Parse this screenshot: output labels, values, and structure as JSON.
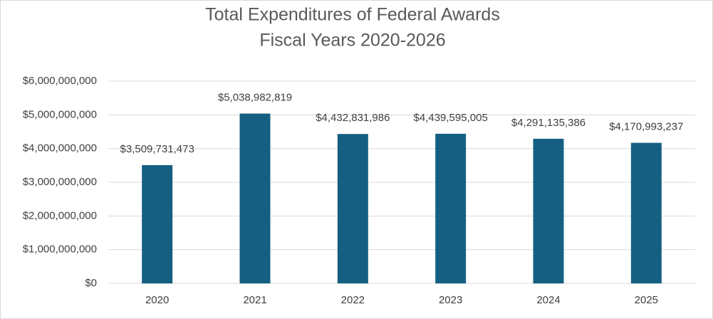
{
  "chart_data": {
    "type": "bar",
    "title": [
      "Total Expenditures of Federal Awards",
      "Fiscal Years 2020-2026"
    ],
    "categories": [
      "2020",
      "2021",
      "2022",
      "2023",
      "2024",
      "2025"
    ],
    "values": [
      3509731473,
      5038982819,
      4432831986,
      4439595005,
      4291135386,
      4170993237
    ],
    "value_labels": [
      "$3,509,731,473",
      "$5,038,982,819",
      "$4,432,831,986",
      "$4,439,595,005",
      "$4,291,135,386",
      "$4,170,993,237"
    ],
    "color": "#156082",
    "ylim": [
      0,
      6000000000
    ],
    "yticks": [
      {
        "value": 0,
        "label": "$0"
      },
      {
        "value": 1000000000,
        "label": "$1,000,000,000"
      },
      {
        "value": 2000000000,
        "label": "$2,000,000,000"
      },
      {
        "value": 3000000000,
        "label": "$3,000,000,000"
      },
      {
        "value": 4000000000,
        "label": "$4,000,000,000"
      },
      {
        "value": 5000000000,
        "label": "$5,000,000,000"
      },
      {
        "value": 6000000000,
        "label": "$6,000,000,000"
      }
    ],
    "grid": true
  }
}
